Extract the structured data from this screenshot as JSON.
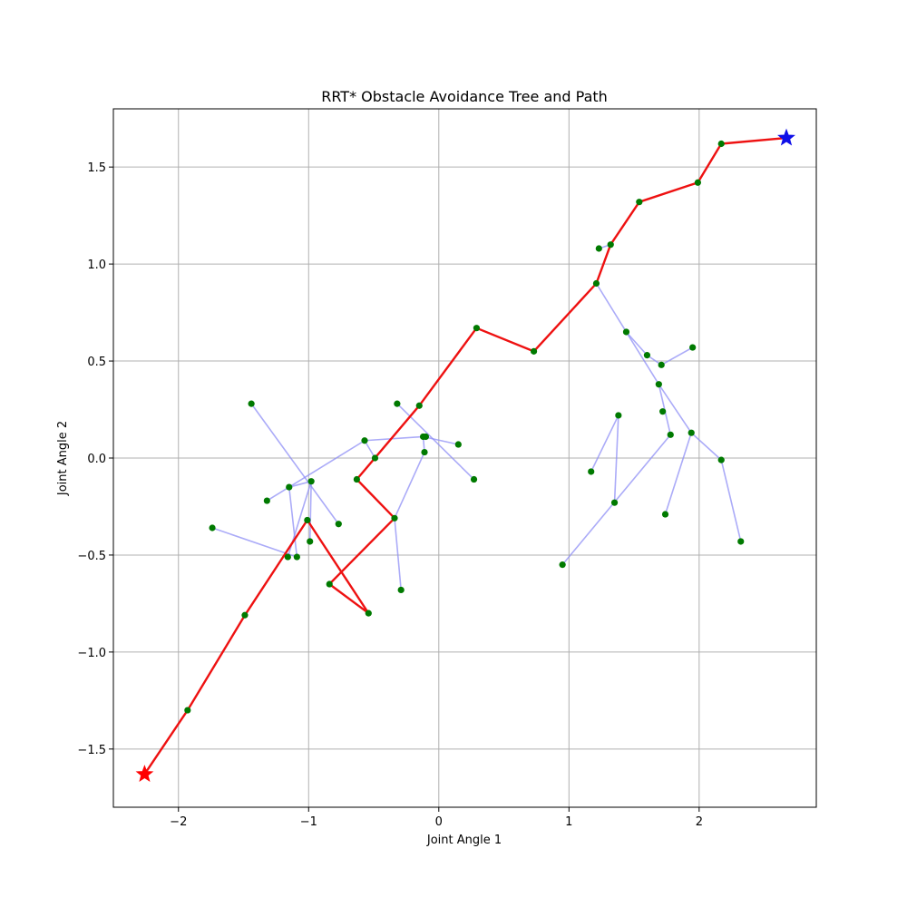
{
  "chart_data": {
    "type": "scatter",
    "title": "RRT* Obstacle Avoidance Tree and Path",
    "xlabel": "Joint Angle 1",
    "ylabel": "Joint Angle 2",
    "xlim": [
      -2.5,
      2.9
    ],
    "ylim": [
      -1.8,
      1.8
    ],
    "xticks": [
      -2,
      -1,
      0,
      1,
      2
    ],
    "yticks": [
      -1.5,
      -1.0,
      -0.5,
      0.0,
      0.5,
      1.0,
      1.5
    ],
    "xtick_labels": [
      "−2",
      "−1",
      "0",
      "1",
      "2"
    ],
    "ytick_labels": [
      "−1.5",
      "−1.0",
      "−0.5",
      "0.0",
      "0.5",
      "1.0",
      "1.5"
    ],
    "grid": true,
    "colors": {
      "tree": "#8f8ff5",
      "path": "#ee1111",
      "node": "#007a00",
      "start": "#ff0000",
      "goal": "#1010e8",
      "grid": "#b0b0b0"
    },
    "start": [
      -2.26,
      -1.63
    ],
    "goal": [
      2.67,
      1.65
    ],
    "nodes": [
      [
        -1.93,
        -1.3
      ],
      [
        -1.49,
        -0.81
      ],
      [
        -1.01,
        -0.32
      ],
      [
        -0.84,
        -0.65
      ],
      [
        -0.54,
        -0.8
      ],
      [
        -0.34,
        -0.31
      ],
      [
        -0.63,
        -0.11
      ],
      [
        -0.15,
        0.27
      ],
      [
        0.29,
        0.67
      ],
      [
        0.73,
        0.55
      ],
      [
        1.21,
        0.9
      ],
      [
        1.32,
        1.1
      ],
      [
        1.54,
        1.32
      ],
      [
        1.99,
        1.42
      ],
      [
        2.17,
        1.62
      ],
      [
        1.23,
        1.08
      ],
      [
        -1.44,
        0.28
      ],
      [
        -1.15,
        -0.15
      ],
      [
        -0.98,
        -0.12
      ],
      [
        -1.32,
        -0.22
      ],
      [
        -1.74,
        -0.36
      ],
      [
        -1.16,
        -0.51
      ],
      [
        -1.09,
        -0.51
      ],
      [
        -0.99,
        -0.43
      ],
      [
        -0.77,
        -0.34
      ],
      [
        -0.57,
        0.09
      ],
      [
        -0.49,
        0.0
      ],
      [
        -0.32,
        0.28
      ],
      [
        -0.12,
        0.11
      ],
      [
        -0.1,
        0.11
      ],
      [
        -0.11,
        0.03
      ],
      [
        0.15,
        0.07
      ],
      [
        0.27,
        -0.11
      ],
      [
        -0.29,
        -0.68
      ],
      [
        1.44,
        0.65
      ],
      [
        1.6,
        0.53
      ],
      [
        1.71,
        0.48
      ],
      [
        1.95,
        0.57
      ],
      [
        1.69,
        0.38
      ],
      [
        1.72,
        0.24
      ],
      [
        1.78,
        0.12
      ],
      [
        1.94,
        0.13
      ],
      [
        2.17,
        -0.01
      ],
      [
        2.32,
        -0.43
      ],
      [
        1.74,
        -0.29
      ],
      [
        1.38,
        0.22
      ],
      [
        1.17,
        -0.07
      ],
      [
        1.35,
        -0.23
      ],
      [
        0.95,
        -0.55
      ]
    ],
    "tree_edges": [
      [
        [
          -0.63,
          -0.11
        ],
        [
          -0.34,
          -0.31
        ]
      ],
      [
        [
          -0.34,
          -0.31
        ],
        [
          -0.29,
          -0.68
        ]
      ],
      [
        [
          -0.34,
          -0.31
        ],
        [
          -0.11,
          0.03
        ]
      ],
      [
        [
          -0.11,
          0.03
        ],
        [
          -0.12,
          0.11
        ]
      ],
      [
        [
          -0.12,
          0.11
        ],
        [
          -0.57,
          0.09
        ]
      ],
      [
        [
          -0.57,
          0.09
        ],
        [
          -1.15,
          -0.15
        ]
      ],
      [
        [
          -0.57,
          0.09
        ],
        [
          -0.49,
          0.0
        ]
      ],
      [
        [
          -0.12,
          0.11
        ],
        [
          0.15,
          0.07
        ]
      ],
      [
        [
          -0.32,
          0.28
        ],
        [
          0.27,
          -0.11
        ]
      ],
      [
        [
          -1.15,
          -0.15
        ],
        [
          -1.32,
          -0.22
        ]
      ],
      [
        [
          -1.15,
          -0.15
        ],
        [
          -0.98,
          -0.12
        ]
      ],
      [
        [
          -1.15,
          -0.15
        ],
        [
          -1.09,
          -0.51
        ]
      ],
      [
        [
          -0.98,
          -0.12
        ],
        [
          -1.16,
          -0.51
        ]
      ],
      [
        [
          -0.98,
          -0.12
        ],
        [
          -0.99,
          -0.43
        ]
      ],
      [
        [
          -1.44,
          0.28
        ],
        [
          -0.77,
          -0.34
        ]
      ],
      [
        [
          -1.74,
          -0.36
        ],
        [
          -1.09,
          -0.51
        ]
      ],
      [
        [
          1.21,
          0.9
        ],
        [
          1.44,
          0.65
        ]
      ],
      [
        [
          1.44,
          0.65
        ],
        [
          1.6,
          0.53
        ]
      ],
      [
        [
          1.44,
          0.65
        ],
        [
          1.69,
          0.38
        ]
      ],
      [
        [
          1.71,
          0.48
        ],
        [
          1.95,
          0.57
        ]
      ],
      [
        [
          1.6,
          0.53
        ],
        [
          1.71,
          0.48
        ]
      ],
      [
        [
          1.69,
          0.38
        ],
        [
          1.78,
          0.12
        ]
      ],
      [
        [
          1.69,
          0.38
        ],
        [
          1.94,
          0.13
        ]
      ],
      [
        [
          1.94,
          0.13
        ],
        [
          2.17,
          -0.01
        ]
      ],
      [
        [
          2.17,
          -0.01
        ],
        [
          2.32,
          -0.43
        ]
      ],
      [
        [
          1.94,
          0.13
        ],
        [
          1.74,
          -0.29
        ]
      ],
      [
        [
          1.78,
          0.12
        ],
        [
          0.95,
          -0.55
        ]
      ],
      [
        [
          1.38,
          0.22
        ],
        [
          1.17,
          -0.07
        ]
      ],
      [
        [
          1.38,
          0.22
        ],
        [
          1.35,
          -0.23
        ]
      ],
      [
        [
          1.23,
          1.08
        ],
        [
          1.32,
          1.1
        ]
      ]
    ],
    "path": [
      [
        -2.26,
        -1.63
      ],
      [
        -1.93,
        -1.3
      ],
      [
        -1.49,
        -0.81
      ],
      [
        -1.01,
        -0.32
      ],
      [
        -0.54,
        -0.8
      ],
      [
        -0.84,
        -0.65
      ],
      [
        -0.34,
        -0.31
      ],
      [
        -0.63,
        -0.11
      ],
      [
        -0.15,
        0.27
      ],
      [
        0.29,
        0.67
      ],
      [
        0.73,
        0.55
      ],
      [
        1.21,
        0.9
      ],
      [
        1.32,
        1.1
      ],
      [
        1.54,
        1.32
      ],
      [
        1.99,
        1.42
      ],
      [
        2.17,
        1.62
      ],
      [
        2.67,
        1.65
      ]
    ]
  }
}
